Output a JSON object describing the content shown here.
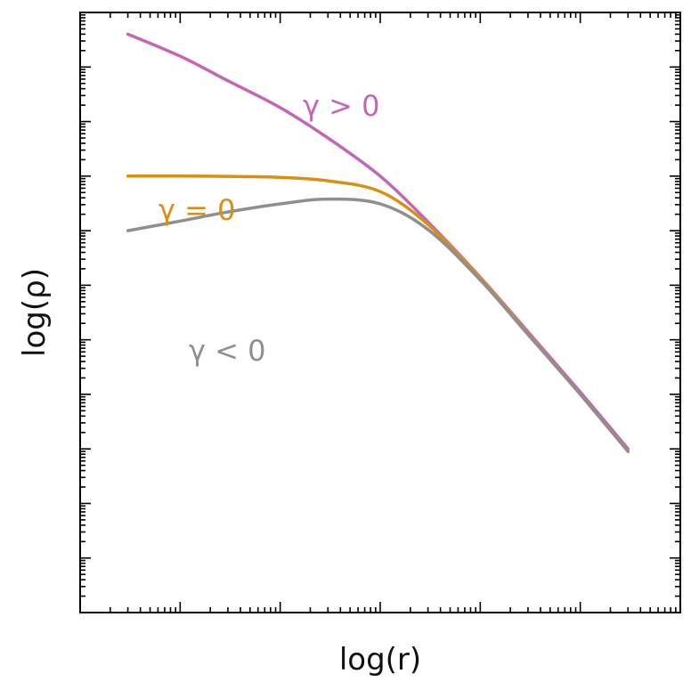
{
  "chart_data": {
    "type": "line",
    "title": "",
    "xlabel": "log(r)",
    "ylabel": "log(ρ)",
    "x_scale": "log",
    "y_scale": "log",
    "xlim": [
      0.001,
      1000
    ],
    "ylim": [
      0.0001,
      10000000
    ],
    "grid": false,
    "legend": "none",
    "series": [
      {
        "name": "γ > 0",
        "color": "#c466b5",
        "x": [
          0.003,
          0.01,
          0.03,
          0.1,
          0.3,
          1,
          3,
          10,
          30,
          100,
          300
        ],
        "y": [
          4000000,
          1580000,
          560000,
          180000,
          50000,
          10000,
          1450,
          140,
          14,
          1.1,
          0.1
        ]
      },
      {
        "name": "γ = 0",
        "color": "#d9900f",
        "x": [
          0.003,
          0.01,
          0.03,
          0.1,
          0.3,
          1,
          3,
          10,
          30,
          100,
          300
        ],
        "y": [
          10000,
          10000,
          9900,
          9500,
          8200,
          5200,
          1300,
          135,
          13,
          1.0,
          0.09
        ]
      },
      {
        "name": "γ < 0",
        "color": "#8f8f8f",
        "x": [
          0.003,
          0.01,
          0.03,
          0.1,
          0.3,
          1,
          3,
          10,
          30,
          100,
          300
        ],
        "y": [
          1000,
          1500,
          2200,
          3100,
          3800,
          3100,
          1050,
          125,
          12.5,
          1.0,
          0.09
        ]
      }
    ],
    "annotations": [
      {
        "text": "γ > 0",
        "color": "#c466b5"
      },
      {
        "text": "γ = 0",
        "color": "#d9900f"
      },
      {
        "text": "γ < 0",
        "color": "#8f8f8f"
      }
    ]
  }
}
